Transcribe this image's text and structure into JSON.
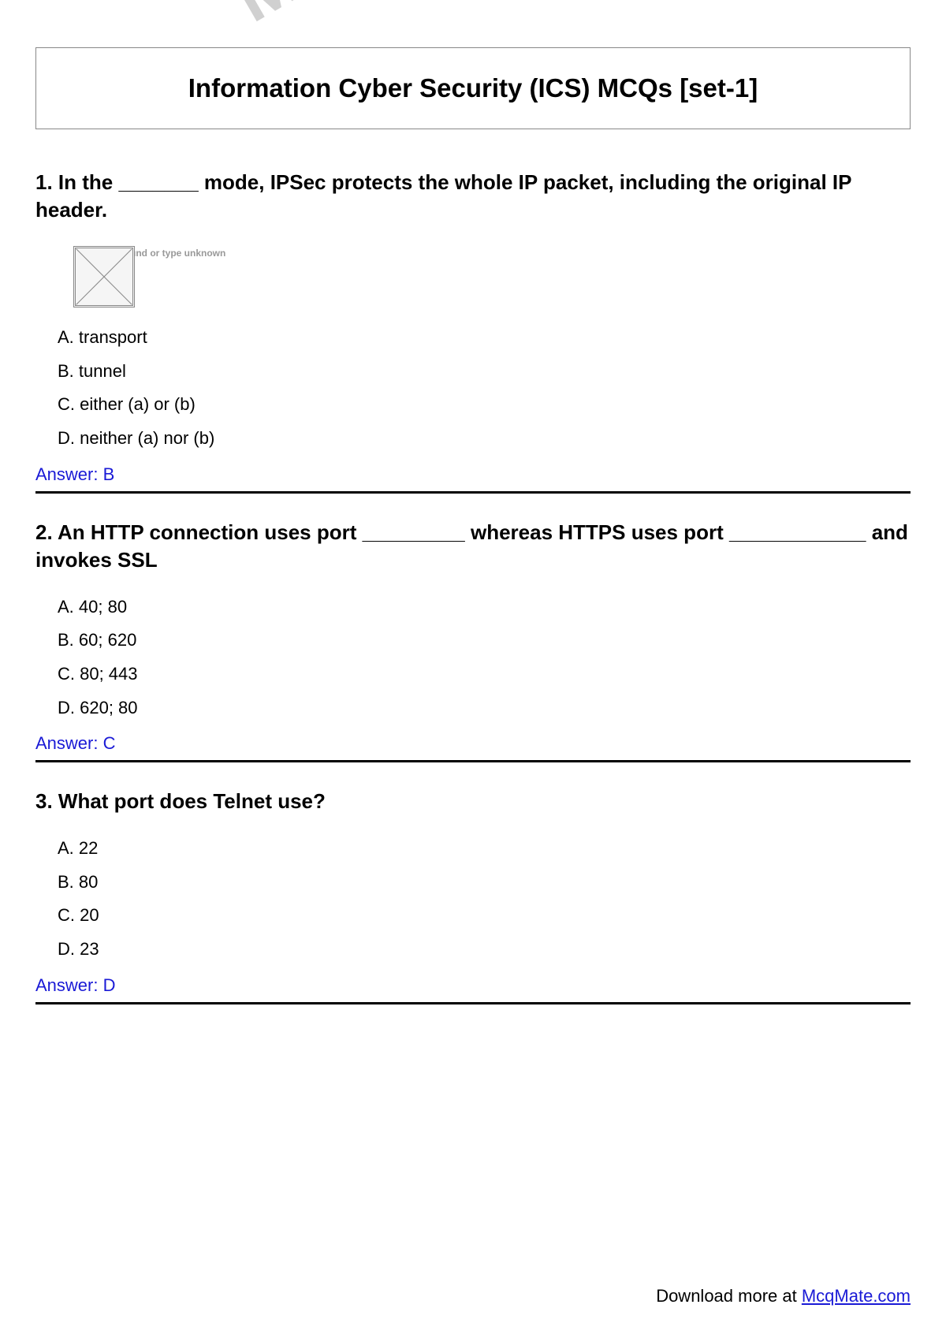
{
  "watermark": "McqMate",
  "page_title": "Information Cyber Security (ICS) MCQs [set-1]",
  "questions": [
    {
      "number": "1",
      "text": "1. In the _______ mode, IPSec protects the whole IP packet, including the original IP header.",
      "has_image_placeholder": true,
      "image_placeholder_text": "mage not found or type unknown",
      "options": [
        "A. transport",
        "B. tunnel",
        "C. either (a) or (b)",
        "D. neither (a) nor (b)"
      ],
      "answer_label": "Answer: B"
    },
    {
      "number": "2",
      "text": "2. An HTTP connection uses port _________ whereas HTTPS uses port ____________ and invokes SSL",
      "has_image_placeholder": false,
      "options": [
        "A. 40; 80",
        "B. 60; 620",
        "C. 80; 443",
        "D. 620; 80"
      ],
      "answer_label": "Answer: C"
    },
    {
      "number": "3",
      "text": "3. What port does Telnet use?",
      "has_image_placeholder": false,
      "options": [
        "A. 22",
        "B. 80",
        "C. 20",
        "D. 23"
      ],
      "answer_label": "Answer: D"
    }
  ],
  "footer": {
    "prefix": "Download more at ",
    "link_text": "McqMate.com",
    "link_href": "#"
  },
  "colors": {
    "text": "#000000",
    "answer": "#1a1ad6",
    "link": "#1a1ad6",
    "border": "#888888",
    "watermark": "#d0d0d0",
    "divider": "#000000",
    "background": "#ffffff"
  },
  "typography": {
    "title_fontsize": 33,
    "question_fontsize": 26,
    "option_fontsize": 22,
    "answer_fontsize": 22,
    "footer_fontsize": 22,
    "font_family": "Arial, Helvetica, sans-serif"
  }
}
